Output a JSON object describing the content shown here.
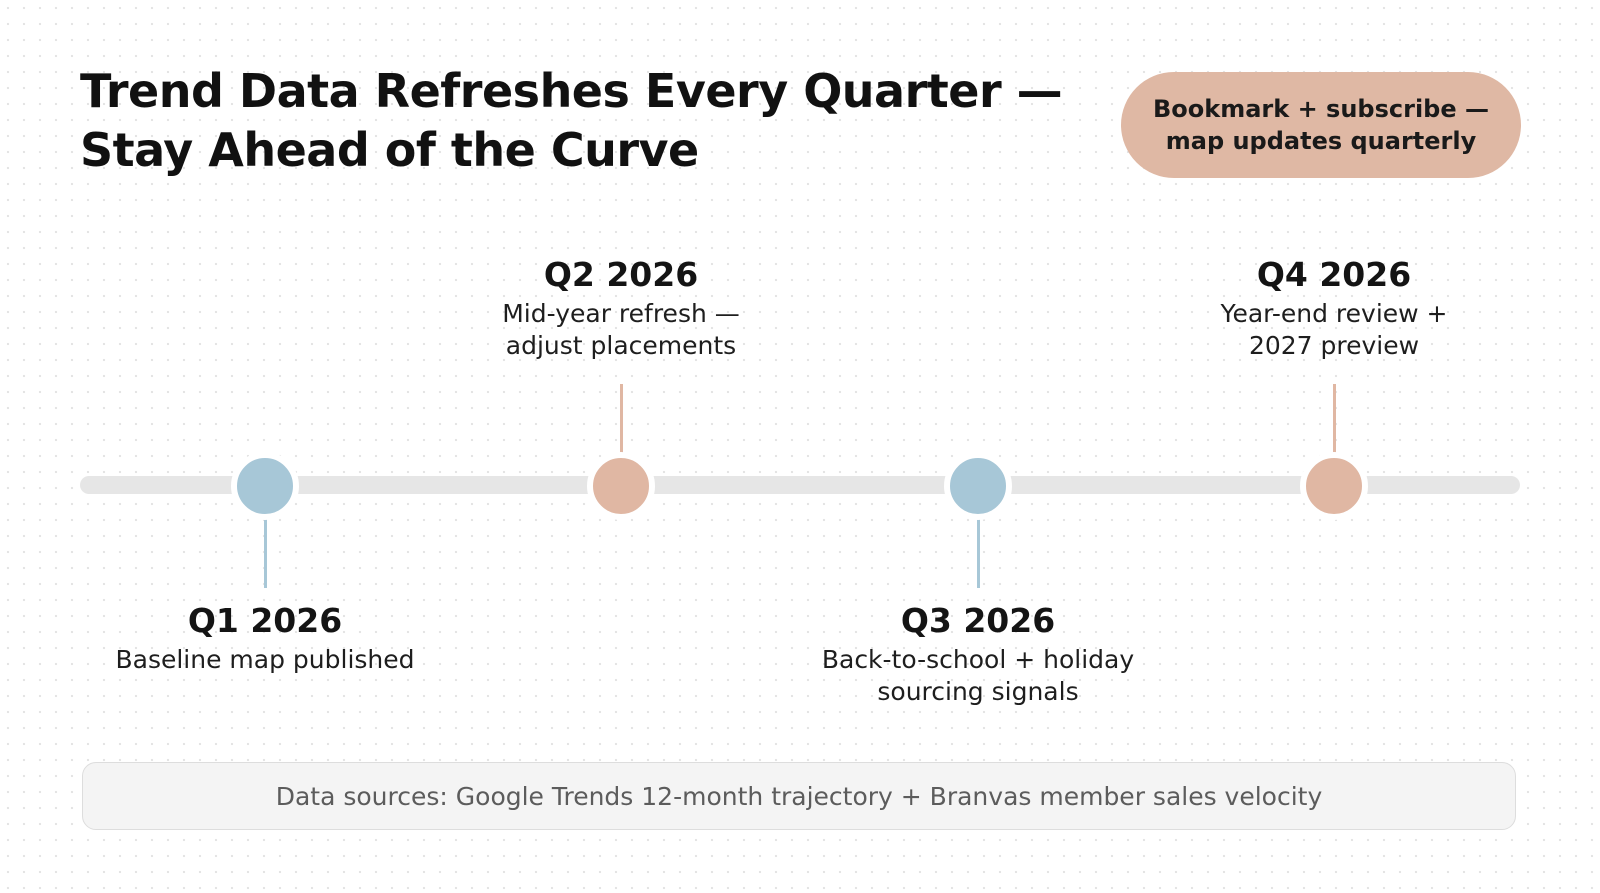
{
  "title": {
    "line1": "Trend Data Refreshes Every Quarter —",
    "line2": "Stay Ahead of the Curve"
  },
  "cta": {
    "line1": "Bookmark + subscribe —",
    "line2": "map updates quarterly"
  },
  "timeline": {
    "milestones": [
      {
        "quarter": "Q1 2026",
        "desc_line1": "Baseline map published",
        "desc_line2": "",
        "position": "below",
        "color": "#a7c7d7"
      },
      {
        "quarter": "Q2 2026",
        "desc_line1": "Mid-year refresh —",
        "desc_line2": "adjust placements",
        "position": "above",
        "color": "#e0b7a3"
      },
      {
        "quarter": "Q3 2026",
        "desc_line1": "Back-to-school + holiday",
        "desc_line2": "sourcing signals",
        "position": "below",
        "color": "#a7c7d7"
      },
      {
        "quarter": "Q4 2026",
        "desc_line1": "Year-end review +",
        "desc_line2": "2027 preview",
        "position": "above",
        "color": "#e0b7a3"
      }
    ]
  },
  "footer": {
    "text": "Data sources: Google Trends 12-month trajectory + Branvas member sales velocity"
  },
  "colors": {
    "accent_peach": "#dfb8a4",
    "accent_blue": "#a7c7d7",
    "track": "#e6e6e6"
  }
}
